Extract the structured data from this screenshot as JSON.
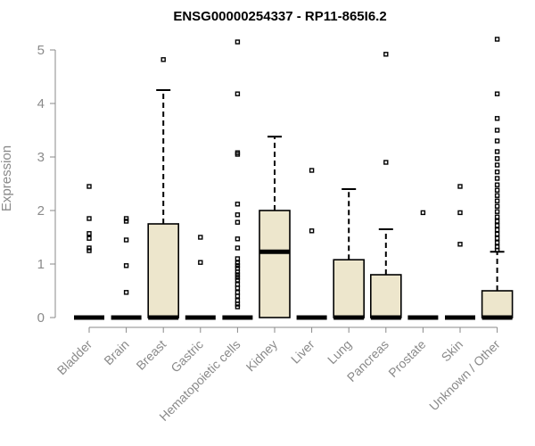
{
  "chart_data": {
    "type": "box",
    "title": "ENSG00000254337 - RP11-865I6.2",
    "xlabel": "",
    "ylabel": "Expression",
    "ylim": [
      0,
      5.2
    ],
    "yticks": [
      0,
      1,
      2,
      3,
      4,
      5
    ],
    "box_fill": "#ede6cc",
    "categories": [
      "Bladder",
      "Brain",
      "Breast",
      "Gastric",
      "Hematopoietic cells",
      "Kidney",
      "Liver",
      "Lung",
      "Pancreas",
      "Prostate",
      "Skin",
      "Unknown / Other"
    ],
    "series": [
      {
        "category": "Bladder",
        "q1": 0,
        "median": 0,
        "q3": 0,
        "whisker_low": 0,
        "whisker_high": 0,
        "outliers": [
          2.45,
          1.85,
          1.57,
          1.48,
          1.3,
          1.25
        ]
      },
      {
        "category": "Brain",
        "q1": 0,
        "median": 0,
        "q3": 0,
        "whisker_low": 0,
        "whisker_high": 0,
        "outliers": [
          1.85,
          1.8,
          1.45,
          0.97,
          0.47
        ]
      },
      {
        "category": "Breast",
        "q1": 0,
        "median": 0,
        "q3": 1.75,
        "whisker_low": 0,
        "whisker_high": 4.25,
        "outliers": [
          4.82
        ]
      },
      {
        "category": "Gastric",
        "q1": 0,
        "median": 0,
        "q3": 0,
        "whisker_low": 0,
        "whisker_high": 0,
        "outliers": [
          1.5,
          1.03
        ]
      },
      {
        "category": "Hematopoietic cells",
        "q1": 0,
        "median": 0,
        "q3": 0,
        "whisker_low": 0,
        "whisker_high": 0,
        "outliers": [
          5.15,
          4.18,
          3.08,
          3.05,
          2.12,
          1.92,
          1.78,
          1.47,
          1.3,
          1.1,
          1.02,
          0.97,
          0.92,
          0.85,
          0.8,
          0.75,
          0.7,
          0.62,
          0.55,
          0.47,
          0.4,
          0.32,
          0.25,
          0.2
        ]
      },
      {
        "category": "Kidney",
        "q1": 0,
        "median": 1.23,
        "q3": 2.0,
        "whisker_low": 0,
        "whisker_high": 3.38,
        "outliers": []
      },
      {
        "category": "Liver",
        "q1": 0,
        "median": 0,
        "q3": 0,
        "whisker_low": 0,
        "whisker_high": 0,
        "outliers": [
          2.75,
          1.62
        ]
      },
      {
        "category": "Lung",
        "q1": 0,
        "median": 0,
        "q3": 1.08,
        "whisker_low": 0,
        "whisker_high": 2.4,
        "outliers": []
      },
      {
        "category": "Pancreas",
        "q1": 0,
        "median": 0,
        "q3": 0.8,
        "whisker_low": 0,
        "whisker_high": 1.65,
        "outliers": [
          4.92,
          2.9
        ]
      },
      {
        "category": "Prostate",
        "q1": 0,
        "median": 0,
        "q3": 0,
        "whisker_low": 0,
        "whisker_high": 0,
        "outliers": [
          1.96
        ]
      },
      {
        "category": "Skin",
        "q1": 0,
        "median": 0,
        "q3": 0,
        "whisker_low": 0,
        "whisker_high": 0,
        "outliers": [
          2.45,
          1.96,
          1.37
        ]
      },
      {
        "category": "Unknown / Other",
        "q1": 0,
        "median": 0,
        "q3": 0.5,
        "whisker_low": 0,
        "whisker_high": 1.23,
        "outliers": [
          5.2,
          4.18,
          3.72,
          3.5,
          3.3,
          3.1,
          2.97,
          2.85,
          2.72,
          2.6,
          2.48,
          2.38,
          2.28,
          2.18,
          2.08,
          1.98,
          1.88,
          1.8,
          1.72,
          1.64,
          1.56,
          1.48,
          1.4,
          1.32,
          1.26
        ]
      }
    ]
  }
}
